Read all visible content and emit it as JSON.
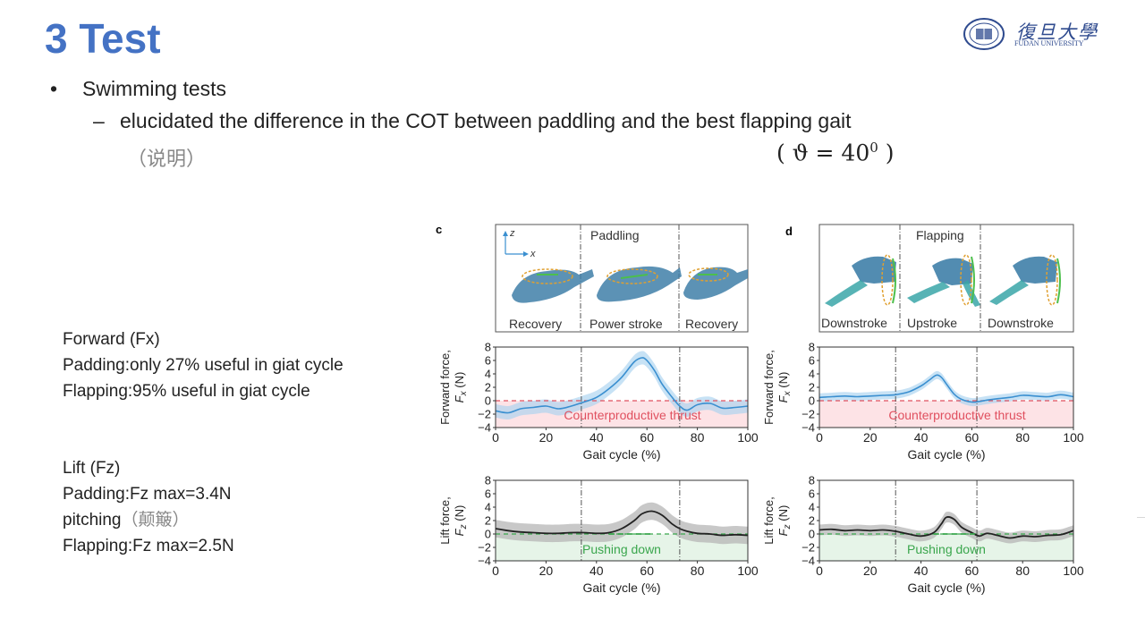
{
  "slide": {
    "title": "3 Test",
    "bullet": "Swimming tests",
    "sub_bullet": "elucidated the difference in the COT between paddling and the best flapping gait",
    "note_cn": "（说明）",
    "theta_lhs": "( ϑ = 40",
    "theta_exp": "0",
    "theta_rhs": " )"
  },
  "logo": {
    "cn": "復旦大學",
    "en": "FUDAN UNIVERSITY"
  },
  "notes": {
    "forward": {
      "heading": "Forward (Fx)",
      "line1": "Padding:only 27% useful in giat cycle",
      "line2": "Flapping:95% useful in giat cycle"
    },
    "lift": {
      "heading": "Lift (Fz)",
      "line1": "Padding:Fz max=3.4N",
      "line2": "pitching",
      "line2_note": "（颠簸）",
      "line3": "Flapping:Fz max=2.5N"
    }
  },
  "panels": {
    "c": {
      "letter": "c",
      "title": "Paddling",
      "phases": [
        "Recovery",
        "Power stroke",
        "Recovery"
      ],
      "axis_z": "z",
      "axis_x": "x"
    },
    "d": {
      "letter": "d",
      "title": "Flapping",
      "phases": [
        "Downstroke",
        "Upstroke",
        "Downstroke"
      ]
    }
  },
  "colors": {
    "forward_line": "#3a8fd0",
    "forward_band": "#a9d3f0",
    "lift_line": "#222222",
    "lift_band": "#b5b5b5",
    "counter_fill": "#fde3e6",
    "counter_text": "#e0505f",
    "push_fill": "#e6f4e8",
    "push_text": "#3aa64d",
    "title_blue": "#4472c4"
  },
  "chart_data": [
    {
      "id": "c-forward",
      "type": "line",
      "xlabel": "Gait cycle (%)",
      "ylabel": "Forward force,",
      "ylabel_sub": "F",
      "ylabel_subscript": "x",
      "ylabel_unit": " (N)",
      "xlim": [
        0,
        100
      ],
      "ylim": [
        -4,
        8
      ],
      "xticks": [
        "0",
        "20",
        "40",
        "60",
        "80",
        "100"
      ],
      "yticks": [
        "8",
        "6",
        "4",
        "2",
        "0",
        "−2",
        "−4"
      ],
      "phase_lines": [
        34,
        73
      ],
      "region_label": "Counterproductive thrust",
      "x": [
        0,
        5,
        10,
        15,
        20,
        25,
        30,
        35,
        40,
        45,
        50,
        55,
        58,
        60,
        63,
        66,
        70,
        73,
        76,
        80,
        85,
        90,
        95,
        100
      ],
      "y": [
        -1.5,
        -1.8,
        -1.2,
        -1.0,
        -0.8,
        -1.2,
        -0.8,
        -0.2,
        0.5,
        1.8,
        3.5,
        5.8,
        6.4,
        6.0,
        4.5,
        2.5,
        0.5,
        -0.8,
        -1.4,
        -0.6,
        -0.4,
        -1.1,
        -1.0,
        -0.8
      ],
      "band": 1.0
    },
    {
      "id": "d-forward",
      "type": "line",
      "xlabel": "Gait cycle (%)",
      "ylabel": "Forward force,",
      "ylabel_sub": "F",
      "ylabel_subscript": "x",
      "ylabel_unit": " (N)",
      "xlim": [
        0,
        100
      ],
      "ylim": [
        -4,
        8
      ],
      "xticks": [
        "0",
        "20",
        "40",
        "60",
        "80",
        "100"
      ],
      "yticks": [
        "8",
        "6",
        "4",
        "2",
        "0",
        "−2",
        "−4"
      ],
      "phase_lines": [
        30,
        62
      ],
      "region_label": "Counterproductive thrust",
      "x": [
        0,
        5,
        10,
        15,
        20,
        25,
        30,
        35,
        40,
        43,
        46,
        48,
        50,
        53,
        56,
        60,
        63,
        66,
        70,
        75,
        80,
        85,
        90,
        95,
        100
      ],
      "y": [
        0.5,
        0.6,
        0.7,
        0.6,
        0.7,
        0.8,
        0.9,
        1.3,
        2.2,
        3.0,
        3.8,
        3.5,
        2.5,
        1.0,
        0.2,
        -0.2,
        -0.1,
        0.1,
        0.3,
        0.5,
        0.8,
        0.7,
        0.6,
        0.9,
        0.6
      ],
      "band": 0.6
    },
    {
      "id": "c-lift",
      "type": "line",
      "xlabel": "Gait cycle (%)",
      "ylabel": "Lift force,",
      "ylabel_sub": "F",
      "ylabel_subscript": "z",
      "ylabel_unit": " (N)",
      "xlim": [
        0,
        100
      ],
      "ylim": [
        -4,
        8
      ],
      "xticks": [
        "0",
        "20",
        "40",
        "60",
        "80",
        "100"
      ],
      "yticks": [
        "8",
        "6",
        "4",
        "2",
        "0",
        "−2",
        "−4"
      ],
      "phase_lines": [
        34,
        73
      ],
      "region_label": "Pushing down",
      "x": [
        0,
        5,
        10,
        15,
        20,
        25,
        30,
        35,
        40,
        45,
        50,
        55,
        58,
        62,
        66,
        70,
        73,
        76,
        80,
        85,
        90,
        95,
        100
      ],
      "y": [
        0.8,
        0.5,
        0.3,
        0.2,
        0.1,
        0.1,
        0.2,
        0.2,
        0.1,
        0.2,
        0.8,
        2.0,
        3.0,
        3.4,
        2.8,
        1.5,
        0.8,
        0.4,
        0.1,
        0.0,
        -0.2,
        -0.1,
        -0.2
      ],
      "band": 1.3
    },
    {
      "id": "d-lift",
      "type": "line",
      "xlabel": "Gait cycle (%)",
      "ylabel": "Lift force,",
      "ylabel_sub": "F",
      "ylabel_subscript": "z",
      "ylabel_unit": " (N)",
      "xlim": [
        0,
        100
      ],
      "ylim": [
        -4,
        8
      ],
      "xticks": [
        "0",
        "20",
        "40",
        "60",
        "80",
        "100"
      ],
      "yticks": [
        "8",
        "6",
        "4",
        "2",
        "0",
        "−2",
        "−4"
      ],
      "phase_lines": [
        30,
        62
      ],
      "region_label": "Pushing down",
      "x": [
        0,
        5,
        10,
        15,
        20,
        25,
        30,
        35,
        40,
        45,
        48,
        50,
        53,
        56,
        60,
        63,
        66,
        70,
        75,
        80,
        85,
        90,
        95,
        100
      ],
      "y": [
        0.6,
        0.7,
        0.5,
        0.6,
        0.5,
        0.6,
        0.4,
        0.0,
        -0.3,
        0.2,
        1.5,
        2.5,
        2.2,
        1.0,
        0.2,
        -0.3,
        0.1,
        -0.2,
        -0.6,
        -0.3,
        -0.4,
        -0.2,
        -0.1,
        0.5
      ],
      "band": 0.8
    }
  ]
}
